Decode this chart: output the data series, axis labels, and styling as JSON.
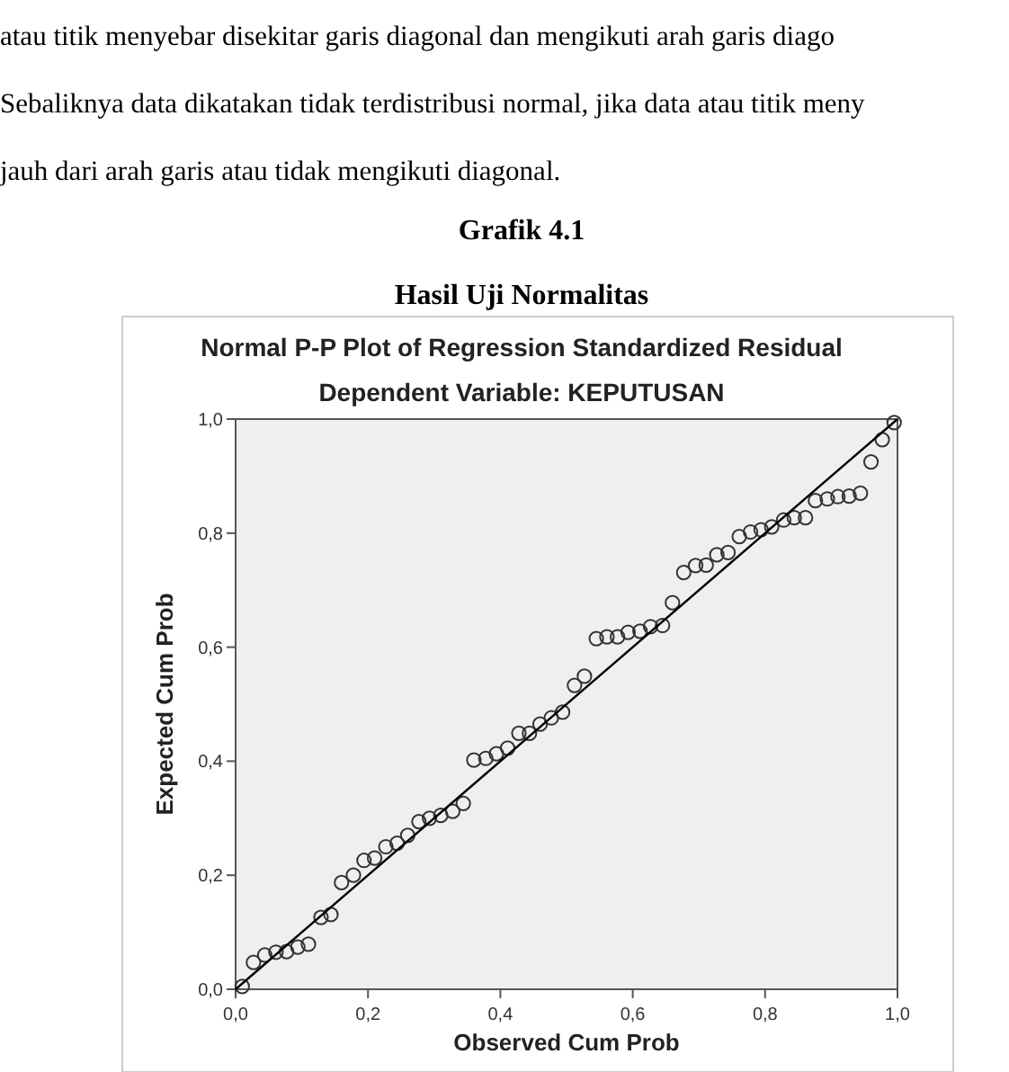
{
  "chart_data": {
    "type": "scatter",
    "title": "Normal P-P Plot of Regression Standardized Residual",
    "subtitle": "Dependent Variable: KEPUTUSAN",
    "xlabel": "Observed Cum Prob",
    "ylabel": "Expected Cum Prob",
    "annotations": [
      "atau titik menyebar disekitar garis diagonal dan mengikuti arah garis diago",
      "Sebaliknya data dikatakan tidak terdistribusi normal, jika data atau titik meny",
      "jauh dari arah garis atau tidak mengikuti diagonal.",
      "Grafik 4.1",
      "Hasil Uji Normalitas"
    ],
    "xlim": [
      0,
      1
    ],
    "ylim": [
      0,
      1
    ],
    "xticks": [
      {
        "value": 0,
        "label": "0,0"
      },
      {
        "value": 0.2,
        "label": "0,2"
      },
      {
        "value": 0.4,
        "label": "0,4"
      },
      {
        "value": 0.6,
        "label": "0,6"
      },
      {
        "value": 0.8,
        "label": "0,8"
      },
      {
        "value": 1,
        "label": "1,0"
      }
    ],
    "yticks": [
      {
        "value": 0,
        "label": "0,0"
      },
      {
        "value": 0.2,
        "label": "0,2"
      },
      {
        "value": 0.4,
        "label": "0,4"
      },
      {
        "value": 0.6,
        "label": "0,6"
      },
      {
        "value": 0.8,
        "label": "0,8"
      },
      {
        "value": 1,
        "label": "1,0"
      }
    ],
    "grid": false,
    "series": [
      {
        "color": "#333333",
        "marker": "circle",
        "x": [
          0.01,
          0.027,
          0.044,
          0.061,
          0.077,
          0.094,
          0.11,
          0.129,
          0.144,
          0.16,
          0.178,
          0.194,
          0.21,
          0.227,
          0.244,
          0.26,
          0.277,
          0.293,
          0.31,
          0.328,
          0.344,
          0.36,
          0.378,
          0.394,
          0.411,
          0.428,
          0.444,
          0.46,
          0.477,
          0.494,
          0.512,
          0.527,
          0.545,
          0.561,
          0.577,
          0.593,
          0.611,
          0.627,
          0.645,
          0.66,
          0.677,
          0.695,
          0.711,
          0.727,
          0.744,
          0.761,
          0.778,
          0.794,
          0.81,
          0.828,
          0.844,
          0.861,
          0.876,
          0.894,
          0.91,
          0.927,
          0.944,
          0.96,
          0.977,
          0.995
        ],
        "values": [
          0.005,
          0.047,
          0.06,
          0.065,
          0.066,
          0.074,
          0.079,
          0.126,
          0.131,
          0.187,
          0.2,
          0.226,
          0.23,
          0.25,
          0.256,
          0.27,
          0.294,
          0.3,
          0.305,
          0.312,
          0.326,
          0.402,
          0.405,
          0.413,
          0.423,
          0.449,
          0.449,
          0.465,
          0.476,
          0.486,
          0.533,
          0.549,
          0.615,
          0.618,
          0.618,
          0.626,
          0.628,
          0.636,
          0.638,
          0.678,
          0.731,
          0.743,
          0.744,
          0.762,
          0.766,
          0.794,
          0.802,
          0.806,
          0.811,
          0.823,
          0.827,
          0.827,
          0.857,
          0.86,
          0.864,
          0.865,
          0.87,
          0.925,
          0.964,
          0.994
        ]
      },
      {
        "type": "line",
        "color": "#000000",
        "marker": "none",
        "line_style": "solid",
        "x": [
          0,
          1
        ],
        "values": [
          0,
          1
        ]
      }
    ]
  }
}
